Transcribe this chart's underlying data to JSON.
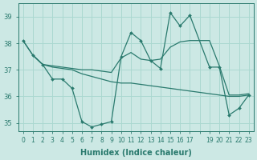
{
  "xlabel": "Humidex (Indice chaleur)",
  "background_color": "#cce8e4",
  "grid_color": "#aad8d0",
  "line_color": "#2a7a6e",
  "xlim": [
    -0.5,
    23.5
  ],
  "ylim": [
    34.7,
    39.5
  ],
  "yticks": [
    35,
    36,
    37,
    38,
    39
  ],
  "xtick_labels": [
    "0",
    "1",
    "2",
    "3",
    "4",
    "5",
    "6",
    "7",
    "8",
    "9",
    "10",
    "11",
    "12",
    "13",
    "14",
    "15",
    "16",
    "17",
    "",
    "19",
    "20",
    "21",
    "22",
    "23"
  ],
  "series1_x": [
    0,
    1,
    2,
    3,
    4,
    5,
    6,
    7,
    8,
    9,
    10,
    11,
    12,
    13,
    14,
    15,
    16,
    17,
    19,
    20,
    21,
    22,
    23
  ],
  "series1_y": [
    38.1,
    37.55,
    37.2,
    36.65,
    36.65,
    36.3,
    35.05,
    34.85,
    34.95,
    35.05,
    37.5,
    38.4,
    38.1,
    37.35,
    37.05,
    39.15,
    38.65,
    39.05,
    37.1,
    37.1,
    35.3,
    35.55,
    36.05
  ],
  "series2_x": [
    0,
    1,
    2,
    3,
    4,
    5,
    6,
    7,
    8,
    9,
    10,
    11,
    12,
    13,
    14,
    15,
    16,
    17,
    19,
    20,
    21,
    22,
    23
  ],
  "series2_y": [
    38.1,
    37.55,
    37.2,
    37.15,
    37.1,
    37.05,
    37.0,
    37.0,
    36.95,
    36.9,
    37.45,
    37.65,
    37.4,
    37.35,
    37.4,
    37.85,
    38.05,
    38.1,
    38.1,
    37.15,
    36.05,
    36.05,
    36.1
  ],
  "series3_x": [
    1,
    2,
    3,
    4,
    5,
    6,
    7,
    8,
    9,
    10,
    11,
    12,
    13,
    14,
    15,
    16,
    17,
    19,
    20,
    21,
    22,
    23
  ],
  "series3_y": [
    37.55,
    37.2,
    37.1,
    37.05,
    37.0,
    36.85,
    36.75,
    36.65,
    36.55,
    36.5,
    36.5,
    36.45,
    36.4,
    36.35,
    36.3,
    36.25,
    36.2,
    36.1,
    36.05,
    36.0,
    36.0,
    36.05
  ]
}
